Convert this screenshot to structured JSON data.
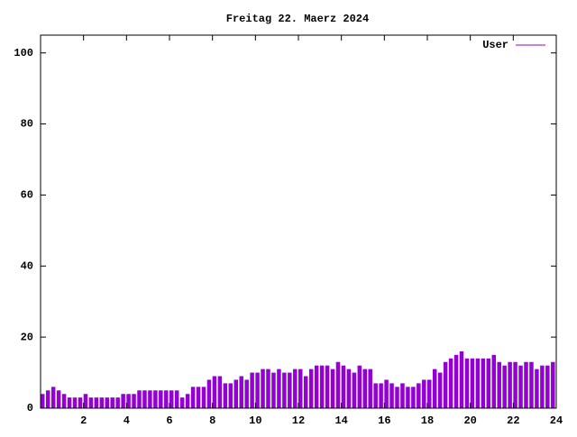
{
  "chart_data": {
    "type": "impulses",
    "title": "Freitag 22. Maerz 2024",
    "x": [
      0,
      0.25,
      0.5,
      0.75,
      1,
      1.25,
      1.5,
      1.75,
      2,
      2.25,
      2.5,
      2.75,
      3,
      3.25,
      3.5,
      3.75,
      4,
      4.25,
      4.5,
      4.75,
      5,
      5.25,
      5.5,
      5.75,
      6,
      6.25,
      6.5,
      6.75,
      7,
      7.25,
      7.5,
      7.75,
      8,
      8.25,
      8.5,
      8.75,
      9,
      9.25,
      9.5,
      9.75,
      10,
      10.25,
      10.5,
      10.75,
      11,
      11.25,
      11.5,
      11.75,
      12,
      12.25,
      12.5,
      12.75,
      13,
      13.25,
      13.5,
      13.75,
      14,
      14.25,
      14.5,
      14.75,
      15,
      15.25,
      15.5,
      15.75,
      16,
      16.25,
      16.5,
      16.75,
      17,
      17.25,
      17.5,
      17.75,
      18,
      18.25,
      18.5,
      18.75,
      19,
      19.25,
      19.5,
      19.75,
      20,
      20.25,
      20.5,
      20.75,
      21,
      21.25,
      21.5,
      21.75,
      22,
      22.25,
      22.5,
      22.75,
      23,
      23.25,
      23.5,
      23.75
    ],
    "series": [
      {
        "name": "User",
        "color": "#9400d3",
        "values": [
          4,
          5,
          6,
          5,
          4,
          3,
          3,
          3,
          4,
          3,
          3,
          3,
          3,
          3,
          3,
          4,
          4,
          4,
          5,
          5,
          5,
          5,
          5,
          5,
          5,
          5,
          3,
          4,
          6,
          6,
          6,
          8,
          9,
          9,
          7,
          7,
          8,
          9,
          8,
          10,
          10,
          11,
          11,
          10,
          11,
          10,
          10,
          11,
          11,
          9,
          11,
          12,
          12,
          12,
          11,
          13,
          12,
          11,
          10,
          12,
          11,
          11,
          7,
          7,
          8,
          7,
          6,
          7,
          6,
          6,
          7,
          8,
          8,
          11,
          10,
          13,
          14,
          15,
          16,
          14,
          14,
          14,
          14,
          14,
          15,
          13,
          12,
          13,
          13,
          12,
          13,
          13,
          11,
          12,
          12,
          13
        ]
      }
    ],
    "xlim": [
      0,
      24
    ],
    "xticks": [
      2,
      4,
      6,
      8,
      10,
      12,
      14,
      16,
      18,
      20,
      22,
      24
    ],
    "ylim": [
      0,
      105
    ],
    "yticks": [
      0,
      20,
      40,
      60,
      80,
      100
    ],
    "legend": "upper right"
  }
}
